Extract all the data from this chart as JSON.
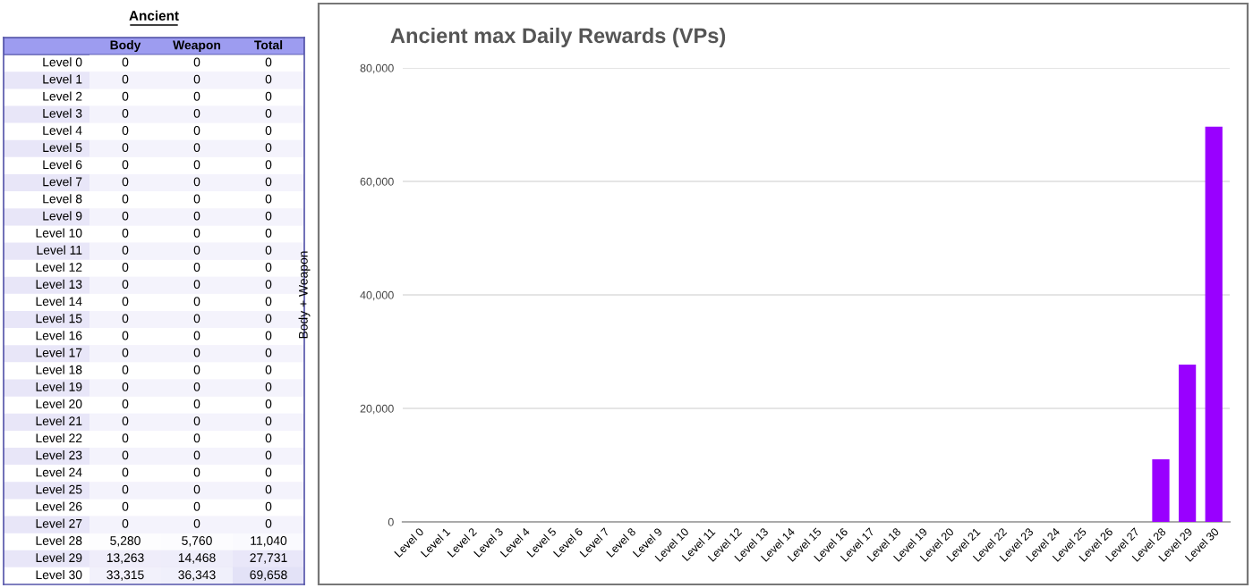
{
  "chart_data": [
    {
      "type": "heatmap",
      "title": "Ancient",
      "categories": [
        "Body",
        "Weapon",
        "Total"
      ],
      "y_categories": [
        "Level 0",
        "Level 1",
        "Level 2",
        "Level 3",
        "Level 4",
        "Level 5",
        "Level 6",
        "Level 7",
        "Level 8",
        "Level 9",
        "Level 10",
        "Level 11",
        "Level 12",
        "Level 13",
        "Level 14",
        "Level 15",
        "Level 16",
        "Level 17",
        "Level 18",
        "Level 19",
        "Level 20",
        "Level 21",
        "Level 22",
        "Level 23",
        "Level 24",
        "Level 25",
        "Level 26",
        "Level 27",
        "Level 28",
        "Level 29",
        "Level 30"
      ],
      "cells": [
        [
          0,
          0,
          0
        ],
        [
          0,
          0,
          0
        ],
        [
          0,
          0,
          0
        ],
        [
          0,
          0,
          0
        ],
        [
          0,
          0,
          0
        ],
        [
          0,
          0,
          0
        ],
        [
          0,
          0,
          0
        ],
        [
          0,
          0,
          0
        ],
        [
          0,
          0,
          0
        ],
        [
          0,
          0,
          0
        ],
        [
          0,
          0,
          0
        ],
        [
          0,
          0,
          0
        ],
        [
          0,
          0,
          0
        ],
        [
          0,
          0,
          0
        ],
        [
          0,
          0,
          0
        ],
        [
          0,
          0,
          0
        ],
        [
          0,
          0,
          0
        ],
        [
          0,
          0,
          0
        ],
        [
          0,
          0,
          0
        ],
        [
          0,
          0,
          0
        ],
        [
          0,
          0,
          0
        ],
        [
          0,
          0,
          0
        ],
        [
          0,
          0,
          0
        ],
        [
          0,
          0,
          0
        ],
        [
          0,
          0,
          0
        ],
        [
          0,
          0,
          0
        ],
        [
          0,
          0,
          0
        ],
        [
          0,
          0,
          0
        ],
        [
          5280,
          5760,
          11040
        ],
        [
          13263,
          14468,
          27731
        ],
        [
          33315,
          36343,
          69658
        ]
      ],
      "cell_labels": [
        [
          "0",
          "0",
          "0"
        ],
        [
          "0",
          "0",
          "0"
        ],
        [
          "0",
          "0",
          "0"
        ],
        [
          "0",
          "0",
          "0"
        ],
        [
          "0",
          "0",
          "0"
        ],
        [
          "0",
          "0",
          "0"
        ],
        [
          "0",
          "0",
          "0"
        ],
        [
          "0",
          "0",
          "0"
        ],
        [
          "0",
          "0",
          "0"
        ],
        [
          "0",
          "0",
          "0"
        ],
        [
          "0",
          "0",
          "0"
        ],
        [
          "0",
          "0",
          "0"
        ],
        [
          "0",
          "0",
          "0"
        ],
        [
          "0",
          "0",
          "0"
        ],
        [
          "0",
          "0",
          "0"
        ],
        [
          "0",
          "0",
          "0"
        ],
        [
          "0",
          "0",
          "0"
        ],
        [
          "0",
          "0",
          "0"
        ],
        [
          "0",
          "0",
          "0"
        ],
        [
          "0",
          "0",
          "0"
        ],
        [
          "0",
          "0",
          "0"
        ],
        [
          "0",
          "0",
          "0"
        ],
        [
          "0",
          "0",
          "0"
        ],
        [
          "0",
          "0",
          "0"
        ],
        [
          "0",
          "0",
          "0"
        ],
        [
          "0",
          "0",
          "0"
        ],
        [
          "0",
          "0",
          "0"
        ],
        [
          "0",
          "0",
          "0"
        ],
        [
          "5,280",
          "5,760",
          "11,040"
        ],
        [
          "13,263",
          "14,468",
          "27,731"
        ],
        [
          "33,315",
          "36,343",
          "69,658"
        ]
      ]
    },
    {
      "type": "bar",
      "title": "Ancient max Daily Rewards (VPs)",
      "ylabel": "Body + Weapon",
      "categories": [
        "Level 0",
        "Level 1",
        "Level 2",
        "Level 3",
        "Level 4",
        "Level 5",
        "Level 6",
        "Level 7",
        "Level 8",
        "Level 9",
        "Level 10",
        "Level 11",
        "Level 12",
        "Level 13",
        "Level 14",
        "Level 15",
        "Level 16",
        "Level 17",
        "Level 18",
        "Level 19",
        "Level 20",
        "Level 21",
        "Level 22",
        "Level 23",
        "Level 24",
        "Level 25",
        "Level 26",
        "Level 27",
        "Level 28",
        "Level 29",
        "Level 30"
      ],
      "values": [
        0,
        0,
        0,
        0,
        0,
        0,
        0,
        0,
        0,
        0,
        0,
        0,
        0,
        0,
        0,
        0,
        0,
        0,
        0,
        0,
        0,
        0,
        0,
        0,
        0,
        0,
        0,
        0,
        11040,
        27731,
        69658
      ],
      "color": "#9900ff",
      "ylim": [
        0,
        80000
      ],
      "yticks": [
        0,
        {
          "value": 20000,
          "label": "20,000"
        },
        {
          "value": 40000,
          "label": "40,000"
        },
        {
          "value": 60000,
          "label": "60,000"
        },
        {
          "value": 80000,
          "label": "80,000"
        }
      ],
      "grid": "y",
      "legend": false
    }
  ]
}
